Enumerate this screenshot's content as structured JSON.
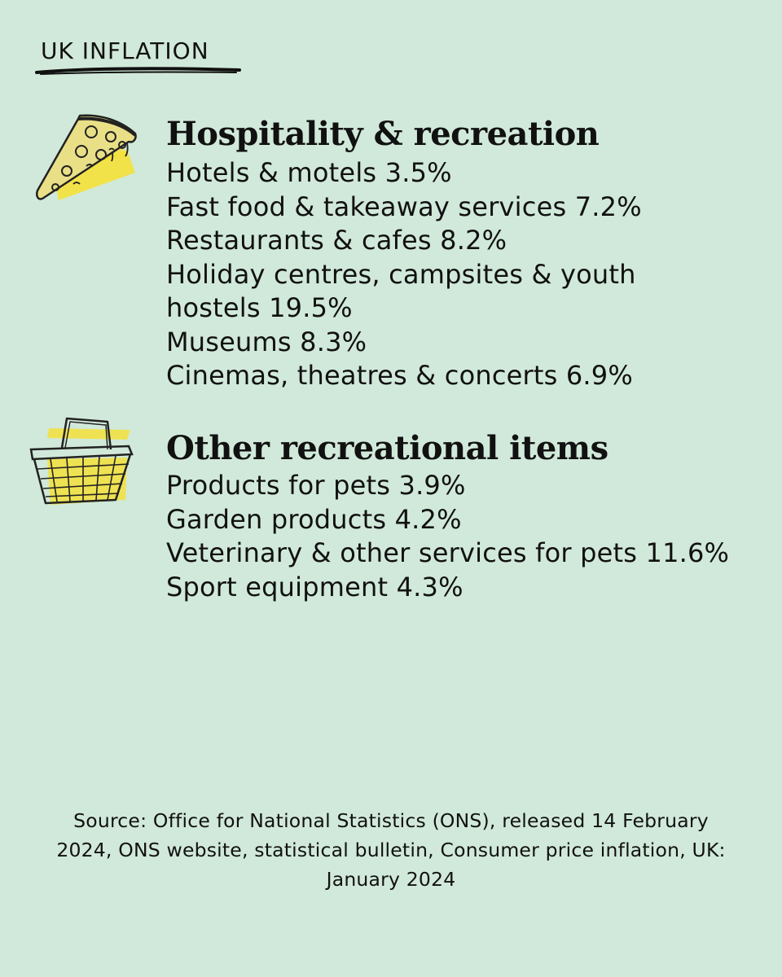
{
  "header": {
    "kicker": "UK INFLATION"
  },
  "sections": [
    {
      "icon": "pizza-slice-icon",
      "heading": "Hospitality & recreation",
      "items": [
        "Hotels & motels 3.5%",
        "Fast food & takeaway services 7.2%",
        "Restaurants & cafes 8.2%",
        "Holiday centres, campsites & youth hostels 19.5%",
        "Museums 8.3%",
        "Cinemas, theatres & concerts 6.9%"
      ]
    },
    {
      "icon": "shopping-basket-icon",
      "heading": "Other recreational items",
      "items": [
        "Products for pets 3.9%",
        "Garden products 4.2%",
        "Veterinary & other services for pets 11.6%",
        "Sport equipment 4.3%"
      ]
    }
  ],
  "footer": {
    "source": "Source: Office for National Statistics (ONS), released 14 February 2024, ONS website, statistical bulletin, Consumer price inflation, UK: January 2024"
  },
  "colors": {
    "background": "#d1e9da",
    "highlight": "#f5e13a",
    "ink": "#111111"
  }
}
